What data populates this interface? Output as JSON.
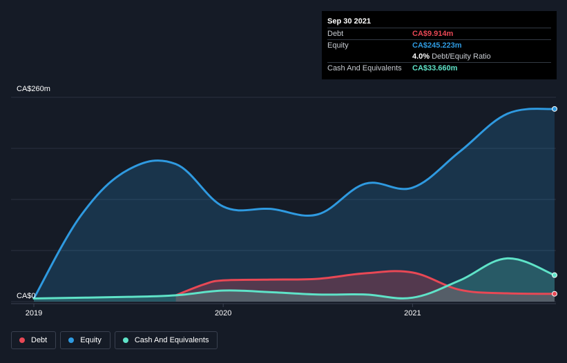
{
  "chart_data": {
    "type": "area",
    "title": "",
    "xlabel": "",
    "ylabel": "",
    "ylim": [
      0,
      260
    ],
    "y_ticks": [
      {
        "value": 260,
        "label": "CA$260m"
      },
      {
        "value": 0,
        "label": "CA$0"
      }
    ],
    "y_gridlines": [
      0,
      65,
      130,
      195,
      260
    ],
    "x_ticks": [
      {
        "value": 2019.0,
        "label": "2019"
      },
      {
        "value": 2020.0,
        "label": "2020"
      },
      {
        "value": 2021.0,
        "label": "2021"
      }
    ],
    "xlim": [
      2019.0,
      2021.75
    ],
    "series": [
      {
        "name": "Debt",
        "color": "#e84855",
        "points": [
          [
            2019.75,
            8
          ],
          [
            2019.9,
            22
          ],
          [
            2020.0,
            27
          ],
          [
            2020.25,
            28
          ],
          [
            2020.5,
            29
          ],
          [
            2020.75,
            36
          ],
          [
            2021.0,
            37
          ],
          [
            2021.25,
            15
          ],
          [
            2021.5,
            10.5
          ],
          [
            2021.75,
            9.914
          ]
        ]
      },
      {
        "name": "Equity",
        "color": "#2f9ae0",
        "points": [
          [
            2019.0,
            4
          ],
          [
            2019.25,
            110
          ],
          [
            2019.5,
            168
          ],
          [
            2019.75,
            175
          ],
          [
            2020.0,
            121
          ],
          [
            2020.25,
            118
          ],
          [
            2020.5,
            111
          ],
          [
            2020.75,
            150
          ],
          [
            2021.0,
            145
          ],
          [
            2021.25,
            191
          ],
          [
            2021.5,
            239
          ],
          [
            2021.75,
            245.223
          ]
        ]
      },
      {
        "name": "Cash And Equivalents",
        "color": "#5fe3c8",
        "points": [
          [
            2019.0,
            4
          ],
          [
            2019.5,
            6
          ],
          [
            2019.75,
            8
          ],
          [
            2020.0,
            14
          ],
          [
            2020.25,
            12
          ],
          [
            2020.5,
            9
          ],
          [
            2020.75,
            9
          ],
          [
            2021.0,
            5
          ],
          [
            2021.25,
            27
          ],
          [
            2021.5,
            55
          ],
          [
            2021.75,
            33.66
          ]
        ]
      }
    ]
  },
  "tooltip": {
    "date": "Sep 30 2021",
    "debt_label": "Debt",
    "debt_value": "CA$9.914m",
    "equity_label": "Equity",
    "equity_value": "CA$245.223m",
    "ratio_pct": "4.0%",
    "ratio_text": "Debt/Equity Ratio",
    "cash_label": "Cash And Equivalents",
    "cash_value": "CA$33.660m",
    "colors": {
      "debt": "#e84855",
      "equity": "#2f9ae0",
      "cash": "#5fe3c8"
    }
  },
  "legend": [
    {
      "label": "Debt",
      "color": "#e84855"
    },
    {
      "label": "Equity",
      "color": "#2f9ae0"
    },
    {
      "label": "Cash And Equivalents",
      "color": "#5fe3c8"
    }
  ]
}
